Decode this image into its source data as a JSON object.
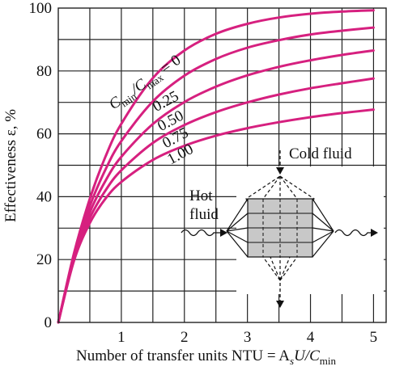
{
  "chart_data": {
    "type": "line",
    "xlabel": "Number of transfer units NTU = A",
    "xlabel_sub_s": "s",
    "xlabel_tail": "U/C",
    "xlabel_sub_min": "min",
    "ylabel": "Effectiveness ε, %",
    "xlim": [
      0,
      5.2
    ],
    "ylim": [
      0,
      100
    ],
    "x_ticks": [
      "1",
      "2",
      "3",
      "4",
      "5"
    ],
    "y_ticks": [
      "0",
      "20",
      "40",
      "60",
      "80",
      "100"
    ],
    "grid": true,
    "series_color": "#d6207f",
    "param_label": {
      "c": "C",
      "c_sub": "min",
      "sep": "/C",
      "c2_sub": "max",
      "eq": " = 0"
    },
    "series": [
      {
        "name": "0",
        "x": [
          0,
          0.25,
          0.5,
          0.75,
          1.0,
          1.5,
          2.0,
          2.5,
          3.0,
          3.5,
          4.0,
          4.5,
          5.0
        ],
        "values": [
          0,
          22.1,
          39.3,
          52.8,
          63.2,
          77.7,
          86.5,
          91.8,
          95.0,
          97.0,
          98.2,
          98.9,
          99.3
        ]
      },
      {
        "name": "0.25",
        "x": [
          0,
          0.25,
          0.5,
          0.75,
          1.0,
          1.5,
          2.0,
          2.5,
          3.0,
          3.5,
          4.0,
          4.5,
          5.0
        ],
        "values": [
          0,
          21.4,
          37.0,
          48.7,
          57.7,
          70.3,
          78.5,
          83.8,
          87.4,
          89.8,
          91.6,
          92.8,
          93.8
        ]
      },
      {
        "name": "0.50",
        "x": [
          0,
          0.25,
          0.5,
          0.75,
          1.0,
          1.5,
          2.0,
          2.5,
          3.0,
          3.5,
          4.0,
          4.5,
          5.0
        ],
        "values": [
          0,
          20.7,
          35.0,
          45.1,
          52.7,
          63.1,
          70.1,
          75.0,
          78.6,
          81.3,
          83.4,
          85.1,
          86.5
        ]
      },
      {
        "name": "0.75",
        "x": [
          0,
          0.25,
          0.5,
          0.75,
          1.0,
          1.5,
          2.0,
          2.5,
          3.0,
          3.5,
          4.0,
          4.5,
          5.0
        ],
        "values": [
          0,
          20.2,
          33.2,
          42.0,
          48.4,
          57.1,
          62.8,
          66.9,
          70.0,
          72.5,
          74.5,
          76.1,
          77.6
        ]
      },
      {
        "name": "1.00",
        "x": [
          0,
          0.25,
          0.5,
          0.75,
          1.0,
          1.5,
          2.0,
          2.5,
          3.0,
          3.5,
          4.0,
          4.5,
          5.0
        ],
        "values": [
          0,
          19.7,
          31.6,
          39.4,
          44.7,
          51.7,
          56.2,
          59.4,
          61.8,
          63.7,
          65.3,
          66.6,
          67.7
        ]
      }
    ]
  },
  "diagram": {
    "cold_label": "Cold fluid",
    "hot_label_1": "Hot",
    "hot_label_2": "fluid"
  }
}
